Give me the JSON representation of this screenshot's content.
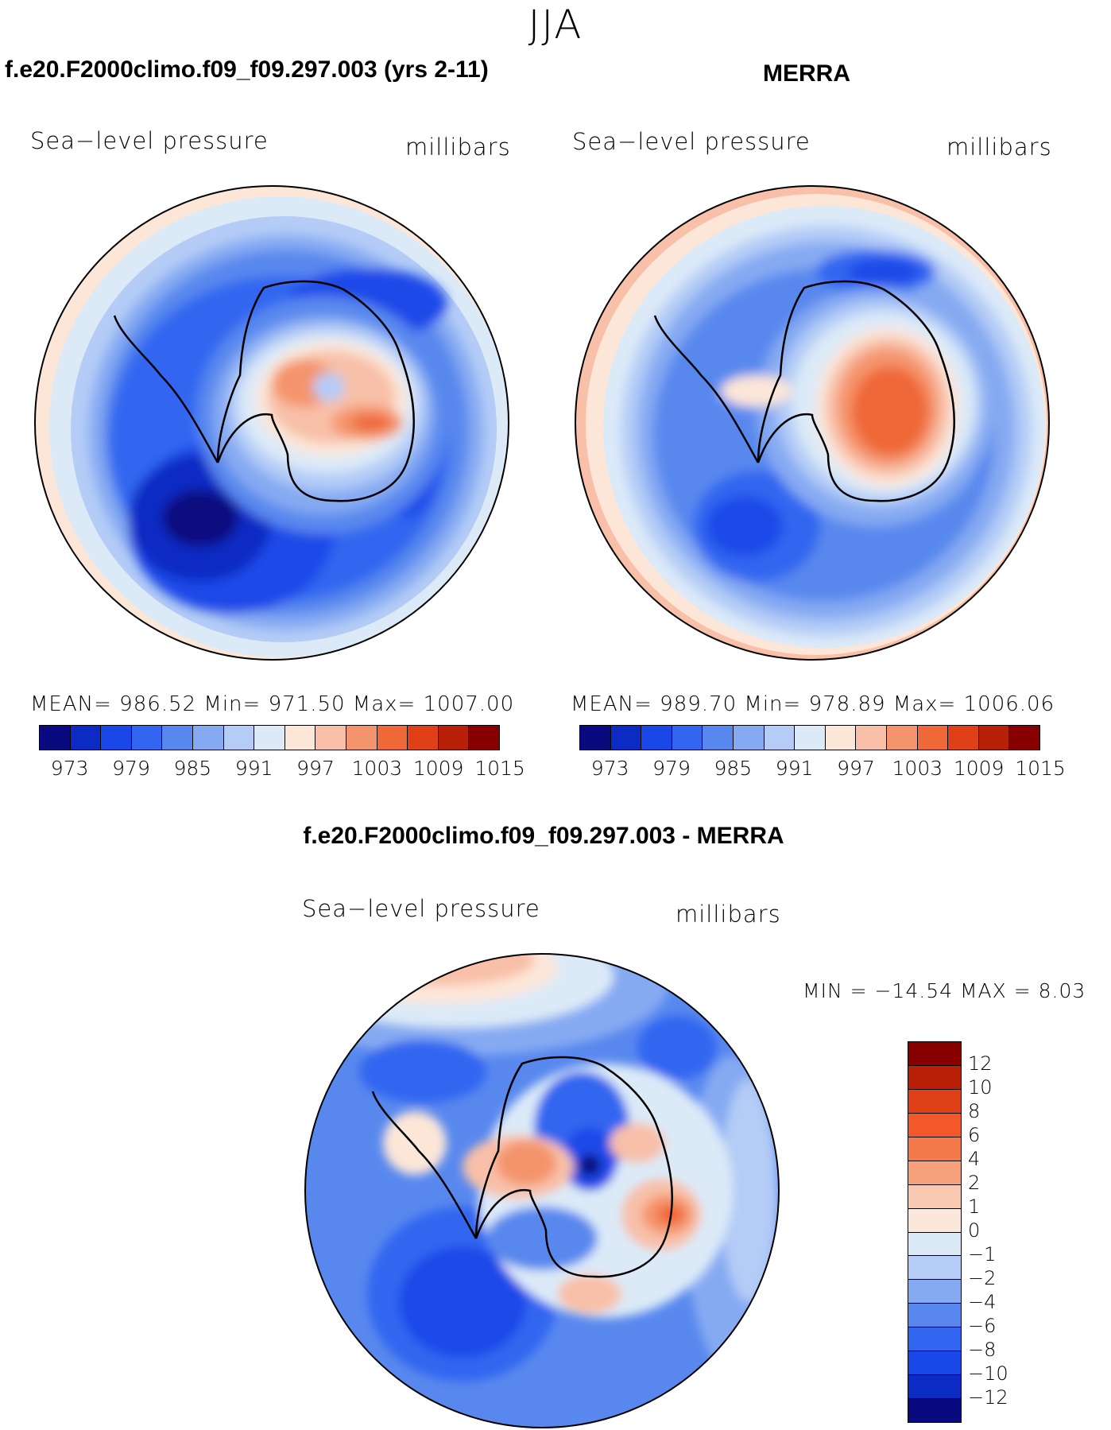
{
  "page": {
    "season": "JJA",
    "diff_title": "f.e20.F2000climo.f09_f09.297.003 - MERRA"
  },
  "panels": [
    {
      "title": "f.e20.F2000climo.f09_f09.297.003 (yrs 2-11)",
      "variable": "Sea−level pressure",
      "units": "millibars",
      "stats": "MEAN= 986.52   Min= 971.50   Max= 1007.00"
    },
    {
      "title": "MERRA",
      "variable": "Sea−level pressure",
      "units": "millibars",
      "stats": "MEAN= 989.70   Min= 978.89   Max= 1006.06"
    },
    {
      "title": "",
      "variable": "Sea−level pressure",
      "units": "millibars",
      "stats": "MIN = −14.54 MAX =     8.03"
    }
  ],
  "colorbar_main": {
    "colors": [
      "#0a0a80",
      "#0c2ac4",
      "#1a48e8",
      "#3366f0",
      "#5888ee",
      "#86aaf2",
      "#b4ccf6",
      "#dceaf8",
      "#fce6d8",
      "#f8c0a8",
      "#f4946c",
      "#ef6838",
      "#e04018",
      "#b82008",
      "#880000"
    ],
    "labels": [
      "973",
      "979",
      "985",
      "991",
      "997",
      "1003",
      "1009",
      "1015"
    ]
  },
  "colorbar_diff": {
    "colors": [
      "#880000",
      "#b82008",
      "#e04018",
      "#f4582a",
      "#f47a4c",
      "#f6a07c",
      "#f8c8b0",
      "#fce8da",
      "#dceaf8",
      "#b4ccf6",
      "#86aaf2",
      "#5888ee",
      "#3366f0",
      "#1a48e8",
      "#0c2ac4",
      "#0a0a80"
    ],
    "labels": [
      "12",
      "10",
      "8",
      "6",
      "4",
      "2",
      "1",
      "0",
      "−1",
      "−2",
      "−4",
      "−6",
      "−8",
      "−10",
      "−12"
    ]
  }
}
